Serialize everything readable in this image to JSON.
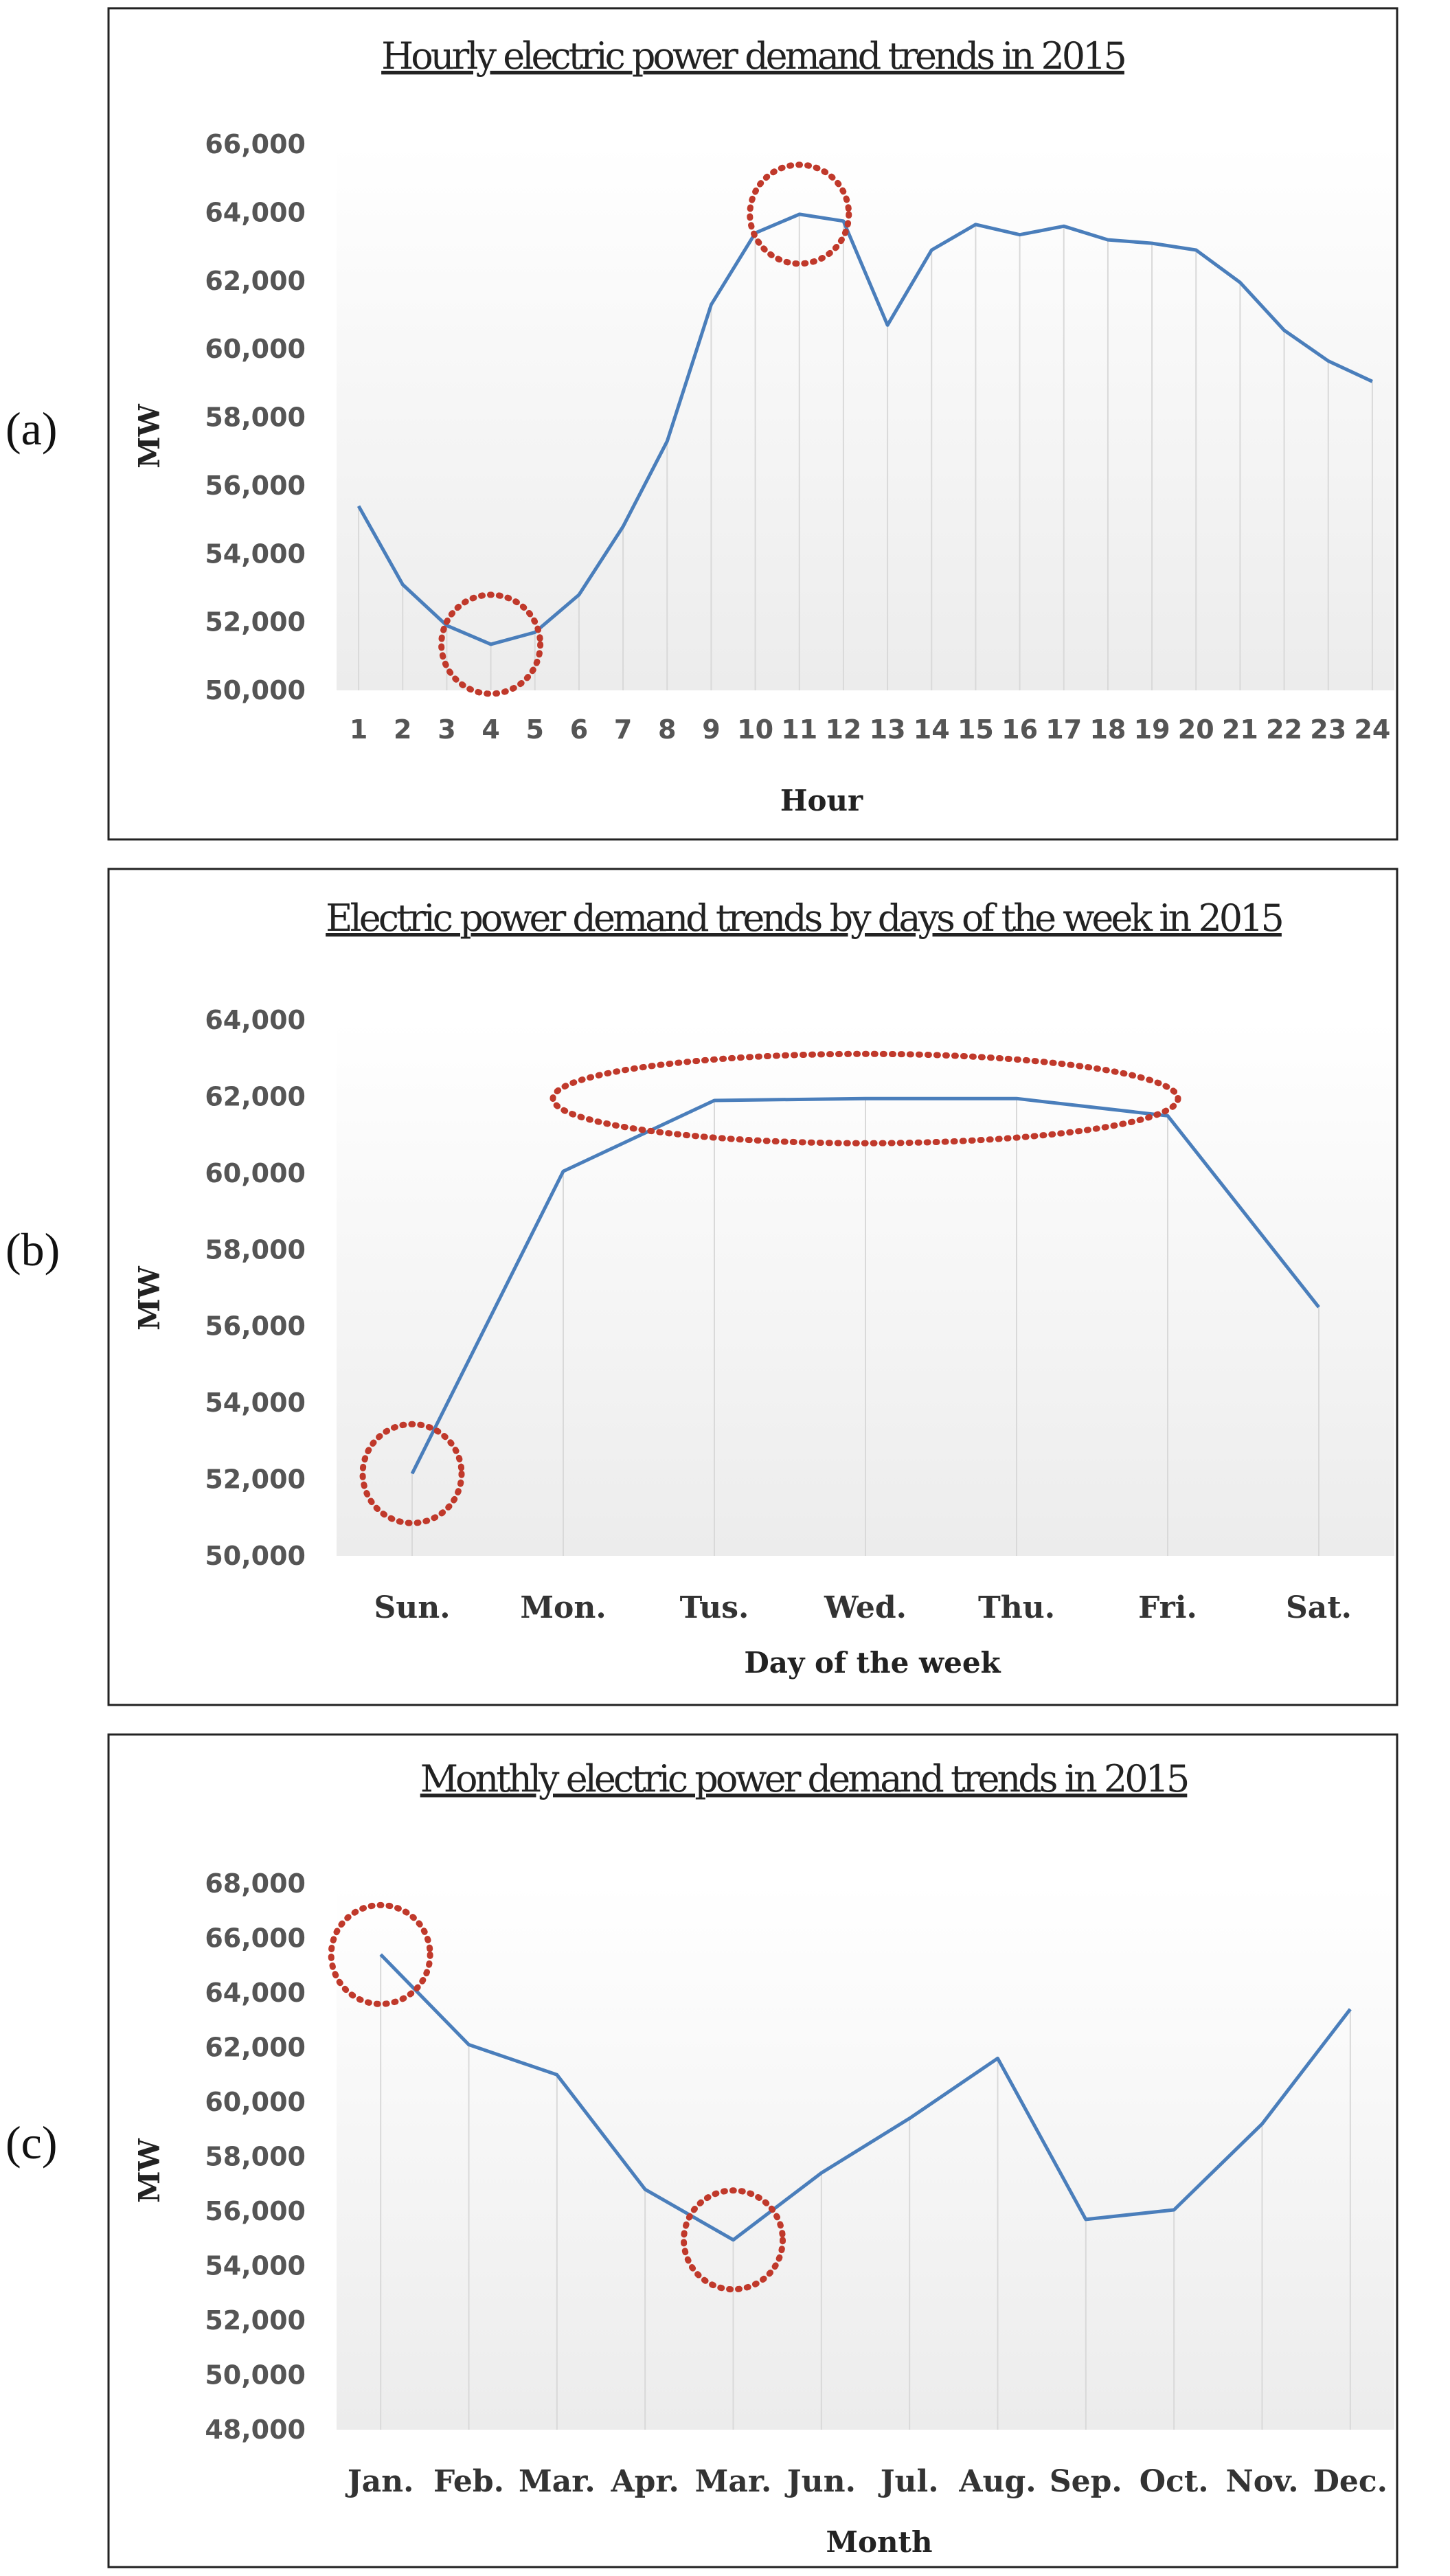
{
  "labels": {
    "a": "(a)",
    "b": "(b)",
    "c": "(c)"
  },
  "colors": {
    "line": "#4a7ebb",
    "circle": "#c0392b",
    "grid": "#d9d9d9",
    "frame": "#222222"
  },
  "chart_data": [
    {
      "type": "line",
      "title": "Hourly electric power demand trends in 2015",
      "xlabel": "Hour",
      "ylabel": "MW",
      "ylim": [
        50000,
        66000
      ],
      "yticks": [
        50000,
        52000,
        54000,
        56000,
        58000,
        60000,
        62000,
        64000,
        66000
      ],
      "ytick_labels": [
        "50,000",
        "52,000",
        "54,000",
        "56,000",
        "58,000",
        "60,000",
        "62,000",
        "64,000",
        "66,000"
      ],
      "categories": [
        "1",
        "2",
        "3",
        "4",
        "5",
        "6",
        "7",
        "8",
        "9",
        "10",
        "11",
        "12",
        "13",
        "14",
        "15",
        "16",
        "17",
        "18",
        "19",
        "20",
        "21",
        "22",
        "23",
        "24"
      ],
      "values": [
        55400,
        53100,
        51900,
        51350,
        51700,
        52800,
        54800,
        57300,
        61300,
        63400,
        63950,
        63750,
        60700,
        62900,
        63650,
        63350,
        63600,
        63200,
        63100,
        62900,
        61950,
        60550,
        59650,
        59050
      ],
      "highlights": [
        "4",
        "11"
      ]
    },
    {
      "type": "line",
      "title": "Electric power demand trends by days of the week in 2015",
      "xlabel": "Day of the week",
      "ylabel": "MW",
      "ylim": [
        50000,
        64000
      ],
      "yticks": [
        50000,
        52000,
        54000,
        56000,
        58000,
        60000,
        62000,
        64000
      ],
      "ytick_labels": [
        "50,000",
        "52,000",
        "54,000",
        "56,000",
        "58,000",
        "60,000",
        "62,000",
        "64,000"
      ],
      "categories": [
        "Sun.",
        "Mon.",
        "Tus.",
        "Wed.",
        "Thu.",
        "Fri.",
        "Sat."
      ],
      "values": [
        52150,
        60050,
        61900,
        61950,
        61950,
        61500,
        56500
      ],
      "highlights": [
        "Sun."
      ],
      "highlight_ranges": [
        [
          "Tus.",
          "Thu."
        ]
      ]
    },
    {
      "type": "line",
      "title": "Monthly electric power demand trends in 2015",
      "xlabel": "Month",
      "ylabel": "MW",
      "ylim": [
        48000,
        68000
      ],
      "yticks": [
        48000,
        50000,
        52000,
        54000,
        56000,
        58000,
        60000,
        62000,
        64000,
        66000,
        68000
      ],
      "ytick_labels": [
        "48,000",
        "50,000",
        "52,000",
        "54,000",
        "56,000",
        "58,000",
        "60,000",
        "62,000",
        "64,000",
        "66,000",
        "68,000"
      ],
      "categories": [
        "Jan.",
        "Feb.",
        "Mar.",
        "Apr.",
        "Mar.",
        "Jun.",
        "Jul.",
        "Aug.",
        "Sep.",
        "Oct.",
        "Nov.",
        "Dec."
      ],
      "values": [
        65400,
        62100,
        61000,
        56800,
        54950,
        57400,
        59400,
        61600,
        55700,
        56050,
        59200,
        63400
      ],
      "highlights_index": [
        0,
        4
      ]
    }
  ]
}
